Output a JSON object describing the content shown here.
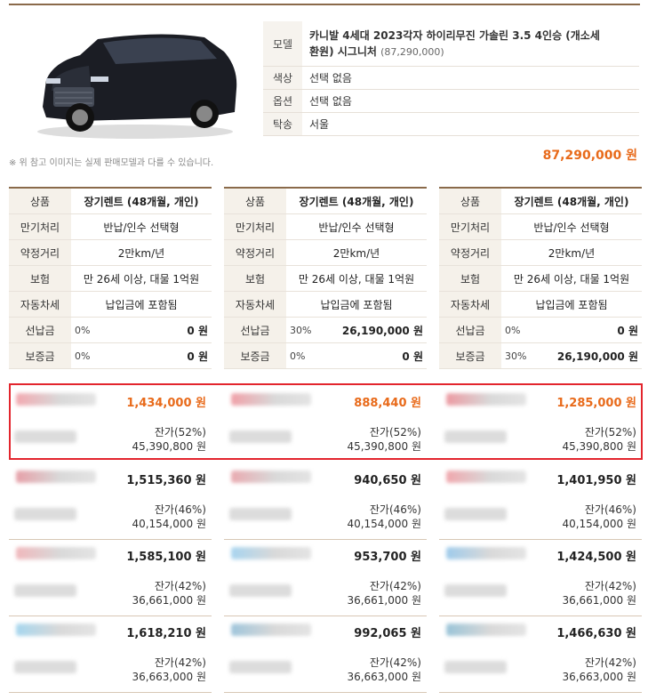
{
  "spec": {
    "model_label": "모델",
    "model_line1": "카니발 4세대 2023각자 하이리무진 가솔린 3.5 4인승 (개소세",
    "model_line2": "환원) 시그니처",
    "model_price": "(87,290,000)",
    "color_label": "색상",
    "color_value": "선택 없음",
    "option_label": "옵션",
    "option_value": "선택 없음",
    "delivery_label": "탁송",
    "delivery_value": "서울"
  },
  "note": "※ 위 참고 이미지는 실제 판매모델과 다를 수 있습니다.",
  "total": "87,290,000 원",
  "conditions": [
    {
      "product": "장기렌트 (48개월, 개인)",
      "maturity": "반납/인수 선택형",
      "mileage": "2만km/년",
      "insurance": "만 26세 이상, 대물 1억원",
      "tax": "납입금에 포함됨",
      "prepay_pct": "0%",
      "prepay_amt": "0 원",
      "deposit_pct": "0%",
      "deposit_amt": "0 원"
    },
    {
      "product": "장기렌트 (48개월, 개인)",
      "maturity": "반납/인수 선택형",
      "mileage": "2만km/년",
      "insurance": "만 26세 이상, 대물 1억원",
      "tax": "납입금에 포함됨",
      "prepay_pct": "30%",
      "prepay_amt": "26,190,000 원",
      "deposit_pct": "0%",
      "deposit_amt": "0 원"
    },
    {
      "product": "장기렌트 (48개월, 개인)",
      "maturity": "반납/인수 선택형",
      "mileage": "2만km/년",
      "insurance": "만 26세 이상, 대물 1억원",
      "tax": "납입금에 포함됨",
      "prepay_pct": "0%",
      "prepay_amt": "0 원",
      "deposit_pct": "30%",
      "deposit_amt": "26,190,000 원"
    }
  ],
  "labels": {
    "product": "상품",
    "maturity": "만기처리",
    "mileage": "약정거리",
    "insurance": "보험",
    "tax": "자동차세",
    "prepay": "선납금",
    "deposit": "보증금"
  },
  "quotes": [
    [
      {
        "price": "1,434,000 원",
        "residual_pct": "잔가(52%)",
        "residual_amt": "45,390,800 원"
      },
      {
        "price": "1,515,360 원",
        "residual_pct": "잔가(46%)",
        "residual_amt": "40,154,000 원"
      },
      {
        "price": "1,585,100 원",
        "residual_pct": "잔가(42%)",
        "residual_amt": "36,661,000 원"
      },
      {
        "price": "1,618,210 원",
        "residual_pct": "잔가(42%)",
        "residual_amt": "36,663,000 원"
      }
    ],
    [
      {
        "price": "888,440 원",
        "residual_pct": "잔가(52%)",
        "residual_amt": "45,390,800 원"
      },
      {
        "price": "940,650 원",
        "residual_pct": "잔가(46%)",
        "residual_amt": "40,154,000 원"
      },
      {
        "price": "953,700 원",
        "residual_pct": "잔가(42%)",
        "residual_amt": "36,661,000 원"
      },
      {
        "price": "992,065 원",
        "residual_pct": "잔가(42%)",
        "residual_amt": "36,663,000 원"
      }
    ],
    [
      {
        "price": "1,285,000 원",
        "residual_pct": "잔가(52%)",
        "residual_amt": "45,390,800 원"
      },
      {
        "price": "1,401,950 원",
        "residual_pct": "잔가(46%)",
        "residual_amt": "40,154,000 원"
      },
      {
        "price": "1,424,500 원",
        "residual_pct": "잔가(42%)",
        "residual_amt": "36,661,000 원"
      },
      {
        "price": "1,466,630 원",
        "residual_pct": "잔가(42%)",
        "residual_amt": "36,663,000 원"
      }
    ]
  ],
  "colors": {
    "accent_orange": "#e86a1a",
    "highlight_red": "#e3252d",
    "brown": "#8a6a4a"
  }
}
